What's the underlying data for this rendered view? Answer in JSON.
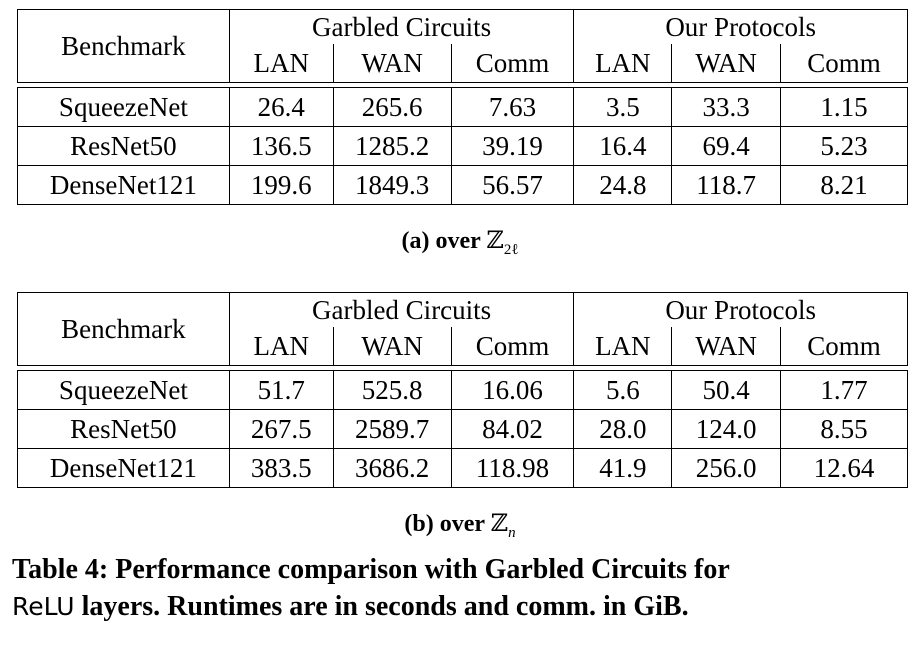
{
  "headers": {
    "benchmark": "Benchmark",
    "group1": "Garbled Circuits",
    "group2": "Our Protocols",
    "cols": [
      "LAN",
      "WAN",
      "Comm",
      "LAN",
      "WAN",
      "Comm"
    ]
  },
  "table_a": {
    "rows": [
      {
        "name": "SqueezeNet",
        "vals": [
          "26.4",
          "265.6",
          "7.63",
          "3.5",
          "33.3",
          "1.15"
        ]
      },
      {
        "name": "ResNet50",
        "vals": [
          "136.5",
          "1285.2",
          "39.19",
          "16.4",
          "69.4",
          "5.23"
        ]
      },
      {
        "name": "DenseNet121",
        "vals": [
          "199.6",
          "1849.3",
          "56.57",
          "24.8",
          "118.7",
          "8.21"
        ]
      }
    ],
    "caption_label": "(a) over",
    "caption_math": "ℤ",
    "caption_sub": "2ℓ"
  },
  "table_b": {
    "rows": [
      {
        "name": "SqueezeNet",
        "vals": [
          "51.7",
          "525.8",
          "16.06",
          "5.6",
          "50.4",
          "1.77"
        ]
      },
      {
        "name": "ResNet50",
        "vals": [
          "267.5",
          "2589.7",
          "84.02",
          "28.0",
          "124.0",
          "8.55"
        ]
      },
      {
        "name": "DenseNet121",
        "vals": [
          "383.5",
          "3686.2",
          "118.98",
          "41.9",
          "256.0",
          "12.64"
        ]
      }
    ],
    "caption_label": "(b) over",
    "caption_math": "ℤ",
    "caption_sub": "n"
  },
  "caption": {
    "part1": "Table 4: Performance comparison with Garbled Circuits for",
    "relu": "ReLU",
    "part2": "layers. Runtimes are in seconds and comm. in GiB."
  }
}
